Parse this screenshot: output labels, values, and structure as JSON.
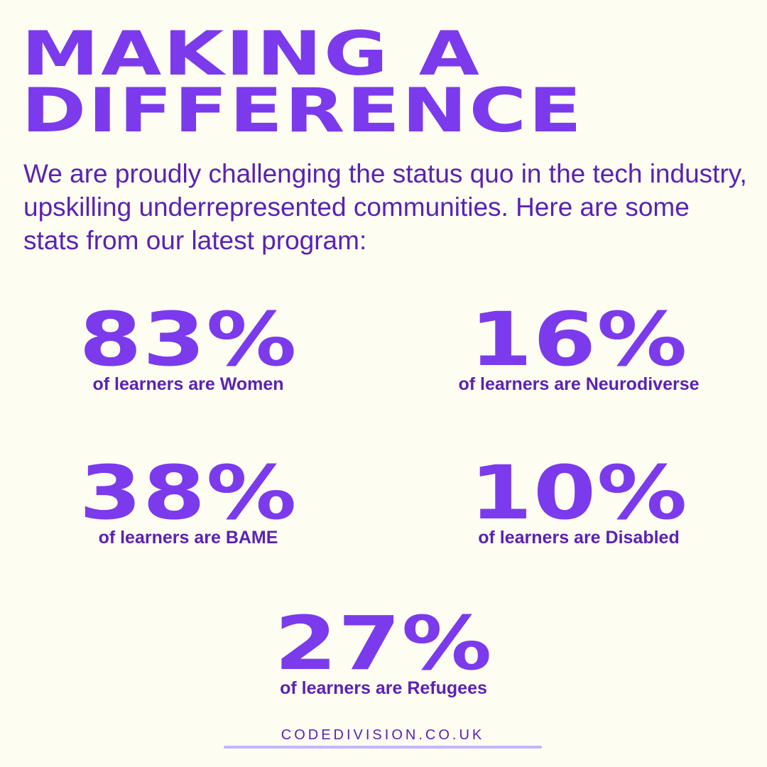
{
  "title": {
    "line1": "MAKING A",
    "line2": "DIFFERENCE"
  },
  "intro": "We are proudly challenging the status quo in the tech industry, upskilling underrepresented communities. Here are some stats from our latest program:",
  "stats": [
    {
      "value": "83%",
      "label": "of learners are Women"
    },
    {
      "value": "16%",
      "label": "of learners are Neurodiverse"
    },
    {
      "value": "38%",
      "label": "of learners are BAME"
    },
    {
      "value": "10%",
      "label": "of learners are Disabled"
    },
    {
      "value": "27%",
      "label": "of learners are Refugees"
    }
  ],
  "footer": {
    "website": "CODEDIVISION.CO.UK"
  },
  "colors": {
    "background": "#fdfdf1",
    "accent": "#7c3aed",
    "text": "#5b21b6",
    "underline": "#c4b5fd"
  }
}
